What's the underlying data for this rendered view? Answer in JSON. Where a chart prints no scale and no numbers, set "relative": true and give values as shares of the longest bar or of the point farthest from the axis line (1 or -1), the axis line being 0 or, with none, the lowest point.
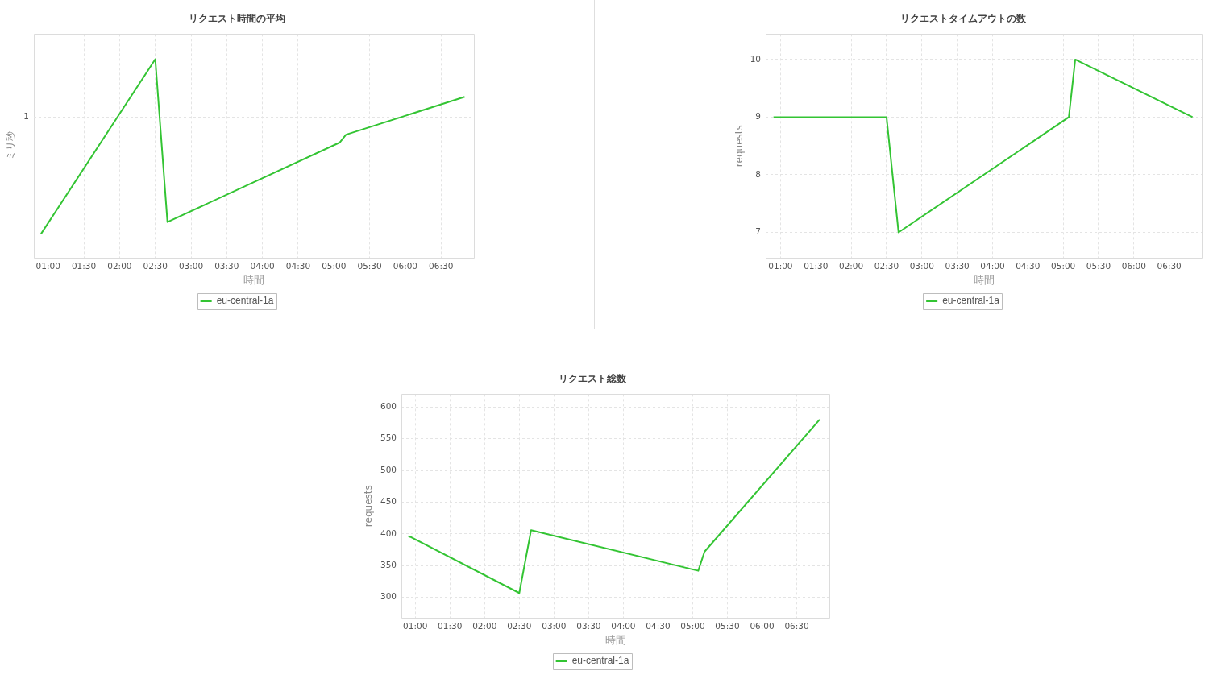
{
  "chart_data": [
    {
      "type": "line",
      "title": "リクエスト時間の平均",
      "xlabel": "時間",
      "ylabel": "ミリ秒",
      "relative": true,
      "x": [
        0.9,
        2.5,
        2.67,
        5.08,
        5.17,
        6.83
      ],
      "series": [
        {
          "name": "eu-central-1a",
          "color": "#33c433",
          "values": [
            0.12,
            1,
            0.18,
            0.58,
            0.62,
            0.81
          ]
        }
      ],
      "xlim": [
        0.8,
        6.96
      ],
      "xticks": [
        {
          "value": 1,
          "label": "01:00"
        },
        {
          "value": 1.5,
          "label": "01:30"
        },
        {
          "value": 2,
          "label": "02:00"
        },
        {
          "value": 2.5,
          "label": "02:30"
        },
        {
          "value": 3,
          "label": "03:00"
        },
        {
          "value": 3.5,
          "label": "03:30"
        },
        {
          "value": 4,
          "label": "04:00"
        },
        {
          "value": 4.5,
          "label": "04:30"
        },
        {
          "value": 5,
          "label": "05:00"
        },
        {
          "value": 5.5,
          "label": "05:30"
        },
        {
          "value": 6,
          "label": "06:00"
        },
        {
          "value": 6.5,
          "label": "06:30"
        }
      ],
      "ref_lines": [
        {
          "axis": "y",
          "value": 0.71,
          "label": "1",
          "color": "#e4e4e4",
          "line_style": "dashed"
        }
      ],
      "grid": "x",
      "legend": "bottom"
    },
    {
      "type": "line",
      "title": "リクエストタイムアウトの数",
      "xlabel": "時間",
      "ylabel": "requests",
      "x": [
        0.9,
        2.5,
        2.67,
        5.08,
        5.17,
        6.83
      ],
      "series": [
        {
          "name": "eu-central-1a",
          "color": "#33c433",
          "values": [
            9,
            9,
            7,
            9,
            10,
            9
          ]
        }
      ],
      "xlim": [
        0.79,
        6.96
      ],
      "xticks": [
        {
          "value": 1,
          "label": "01:00"
        },
        {
          "value": 1.5,
          "label": "01:30"
        },
        {
          "value": 2,
          "label": "02:00"
        },
        {
          "value": 2.5,
          "label": "02:30"
        },
        {
          "value": 3,
          "label": "03:00"
        },
        {
          "value": 3.5,
          "label": "03:30"
        },
        {
          "value": 4,
          "label": "04:00"
        },
        {
          "value": 4.5,
          "label": "04:30"
        },
        {
          "value": 5,
          "label": "05:00"
        },
        {
          "value": 5.5,
          "label": "05:30"
        },
        {
          "value": 6,
          "label": "06:00"
        },
        {
          "value": 6.5,
          "label": "06:30"
        }
      ],
      "ylim": [
        6.56,
        10.44
      ],
      "yticks": [
        7,
        8,
        9,
        10
      ],
      "grid": true,
      "legend": "bottom"
    },
    {
      "type": "line",
      "title": "リクエスト総数",
      "xlabel": "時間",
      "ylabel": "requests",
      "x": [
        0.9,
        2.5,
        2.67,
        5.08,
        5.17,
        6.83
      ],
      "series": [
        {
          "name": "eu-central-1a",
          "color": "#33c433",
          "values": [
            397,
            307,
            406,
            342,
            372,
            580
          ]
        }
      ],
      "xlim": [
        0.8,
        6.97
      ],
      "xticks": [
        {
          "value": 1,
          "label": "01:00"
        },
        {
          "value": 1.5,
          "label": "01:30"
        },
        {
          "value": 2,
          "label": "02:00"
        },
        {
          "value": 2.5,
          "label": "02:30"
        },
        {
          "value": 3,
          "label": "03:00"
        },
        {
          "value": 3.5,
          "label": "03:30"
        },
        {
          "value": 4,
          "label": "04:00"
        },
        {
          "value": 4.5,
          "label": "04:30"
        },
        {
          "value": 5,
          "label": "05:00"
        },
        {
          "value": 5.5,
          "label": "05:30"
        },
        {
          "value": 6,
          "label": "06:00"
        },
        {
          "value": 6.5,
          "label": "06:30"
        }
      ],
      "ylim": [
        268,
        620
      ],
      "yticks": [
        300,
        350,
        400,
        450,
        500,
        550,
        600
      ],
      "grid": true,
      "legend": "bottom"
    }
  ]
}
